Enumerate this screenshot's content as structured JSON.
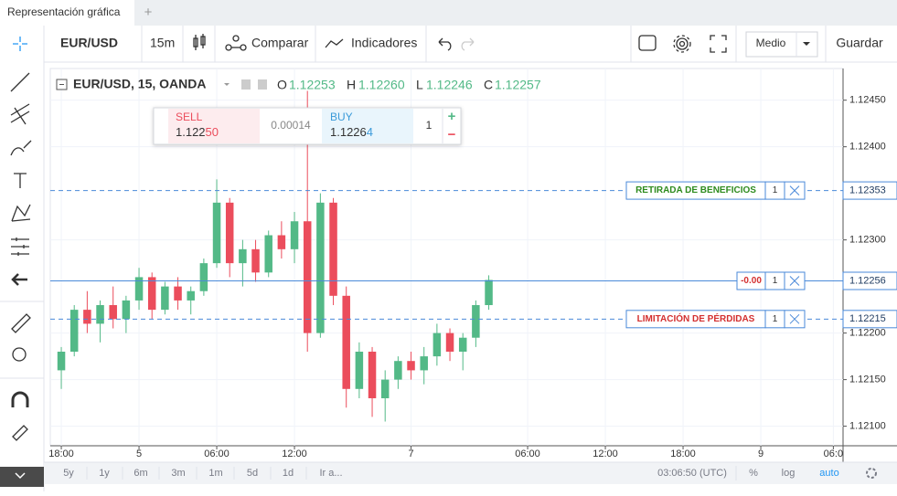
{
  "tab": {
    "title": "Representación gráfica",
    "add": "+"
  },
  "toolbar": {
    "symbol": "EUR/USD",
    "interval": "15m",
    "compare": "Comparar",
    "indicators": "Indicadores",
    "layout": "Medio",
    "save": "Guardar"
  },
  "legend": {
    "title": "EUR/USD, 15, OANDA",
    "open_label": "O",
    "open": "1.12253",
    "high_label": "H",
    "high": "1.12260",
    "low_label": "L",
    "low": "1.12246",
    "close_label": "C",
    "close": "1.12257"
  },
  "trade": {
    "sell_label": "SELL",
    "sell_price_main": "1.122",
    "sell_price_pips": "50",
    "spread": "0.00014",
    "buy_label": "BUY",
    "buy_price_main": "1.1226",
    "buy_price_pips": "4",
    "quantity": "1",
    "plus": "+",
    "minus": "−"
  },
  "bottom": {
    "ranges": [
      "5y",
      "1y",
      "6m",
      "3m",
      "1m",
      "5d",
      "1d"
    ],
    "goto": "Ir a...",
    "clock": "03:06:50 (UTC)",
    "percent": "%",
    "log": "log",
    "auto": "auto"
  },
  "chart_data": {
    "type": "candlestick",
    "up_color": "#53b987",
    "down_color": "#eb4d5c",
    "grid": true,
    "xlim": [
      -0.85,
      60.35
    ],
    "xticks": [
      {
        "value": 0,
        "label": "18:00"
      },
      {
        "value": 6,
        "label": "5"
      },
      {
        "value": 12,
        "label": "06:00"
      },
      {
        "value": 18,
        "label": "12:00"
      },
      {
        "value": 27,
        "label": "7"
      },
      {
        "value": 36,
        "label": "06:00"
      },
      {
        "value": 42,
        "label": "12:00"
      },
      {
        "value": 48,
        "label": "18:00"
      },
      {
        "value": 54,
        "label": "9"
      },
      {
        "value": 59.6,
        "label": "06:0"
      }
    ],
    "ylim": [
      1.12079,
      1.12484
    ],
    "yticks": [
      {
        "value": 1.121,
        "label": "1.12100"
      },
      {
        "value": 1.1215,
        "label": "1.12150"
      },
      {
        "value": 1.122,
        "label": "1.12200"
      },
      {
        "value": 1.123,
        "label": "1.12300"
      },
      {
        "value": 1.124,
        "label": "1.12400"
      },
      {
        "value": 1.1245,
        "label": "1.12450"
      }
    ],
    "candles": {
      "x": [
        0,
        1,
        2,
        3,
        4,
        5,
        6,
        7,
        8,
        9,
        10,
        11,
        12,
        13,
        14,
        15,
        16,
        17,
        18,
        19,
        20,
        21,
        22,
        23,
        24,
        25,
        26,
        27,
        28,
        29,
        30,
        31,
        32,
        33
      ],
      "open": [
        1.1216,
        1.1218,
        1.12225,
        1.1221,
        1.1223,
        1.12215,
        1.12235,
        1.1226,
        1.12225,
        1.1225,
        1.12235,
        1.12245,
        1.12275,
        1.1234,
        1.12275,
        1.1229,
        1.12265,
        1.12305,
        1.1229,
        1.1232,
        1.122,
        1.1234,
        1.1224,
        1.1214,
        1.1218,
        1.1213,
        1.1215,
        1.1217,
        1.1216,
        1.12175,
        1.122,
        1.1218,
        1.12195,
        1.1223
      ],
      "high": [
        1.12185,
        1.1223,
        1.12245,
        1.12235,
        1.1225,
        1.1224,
        1.1227,
        1.12265,
        1.12255,
        1.1226,
        1.1225,
        1.1228,
        1.12365,
        1.12345,
        1.123,
        1.123,
        1.1231,
        1.1232,
        1.1233,
        1.1246,
        1.1235,
        1.12345,
        1.1225,
        1.1219,
        1.12185,
        1.1216,
        1.12175,
        1.1218,
        1.12185,
        1.1221,
        1.12205,
        1.122,
        1.12235,
        1.12262
      ],
      "low": [
        1.1214,
        1.12175,
        1.122,
        1.1219,
        1.12205,
        1.122,
        1.12225,
        1.12215,
        1.1222,
        1.12225,
        1.1222,
        1.1224,
        1.1227,
        1.1226,
        1.1225,
        1.12255,
        1.1226,
        1.1228,
        1.12275,
        1.1218,
        1.12195,
        1.1223,
        1.1212,
        1.1213,
        1.1211,
        1.12105,
        1.1214,
        1.1215,
        1.12145,
        1.12165,
        1.1217,
        1.1216,
        1.12185,
        1.12225
      ],
      "close": [
        1.1218,
        1.12225,
        1.1221,
        1.1223,
        1.12215,
        1.12235,
        1.1226,
        1.12225,
        1.1225,
        1.12235,
        1.12245,
        1.12275,
        1.1234,
        1.12275,
        1.1229,
        1.12265,
        1.12305,
        1.1229,
        1.1232,
        1.122,
        1.1234,
        1.1224,
        1.1214,
        1.1218,
        1.1213,
        1.1215,
        1.1217,
        1.1216,
        1.12175,
        1.122,
        1.1218,
        1.12195,
        1.1223,
        1.12257
      ]
    },
    "levels": [
      {
        "value": 1.12353,
        "label": "RETIRADA DE BENEFICIOS",
        "qty": 1,
        "color": "#2e8b1e",
        "style": "dashed",
        "box_left": true
      },
      {
        "value": 1.12256,
        "label": "-0.00",
        "qty": 1,
        "color": "#d32f2f",
        "style": "solid",
        "box_left": false
      },
      {
        "value": 1.12215,
        "label": "LIMITACIÓN DE PÉRDIDAS",
        "qty": 1,
        "color": "#d32f2f",
        "style": "dashed",
        "box_left": true
      }
    ]
  }
}
